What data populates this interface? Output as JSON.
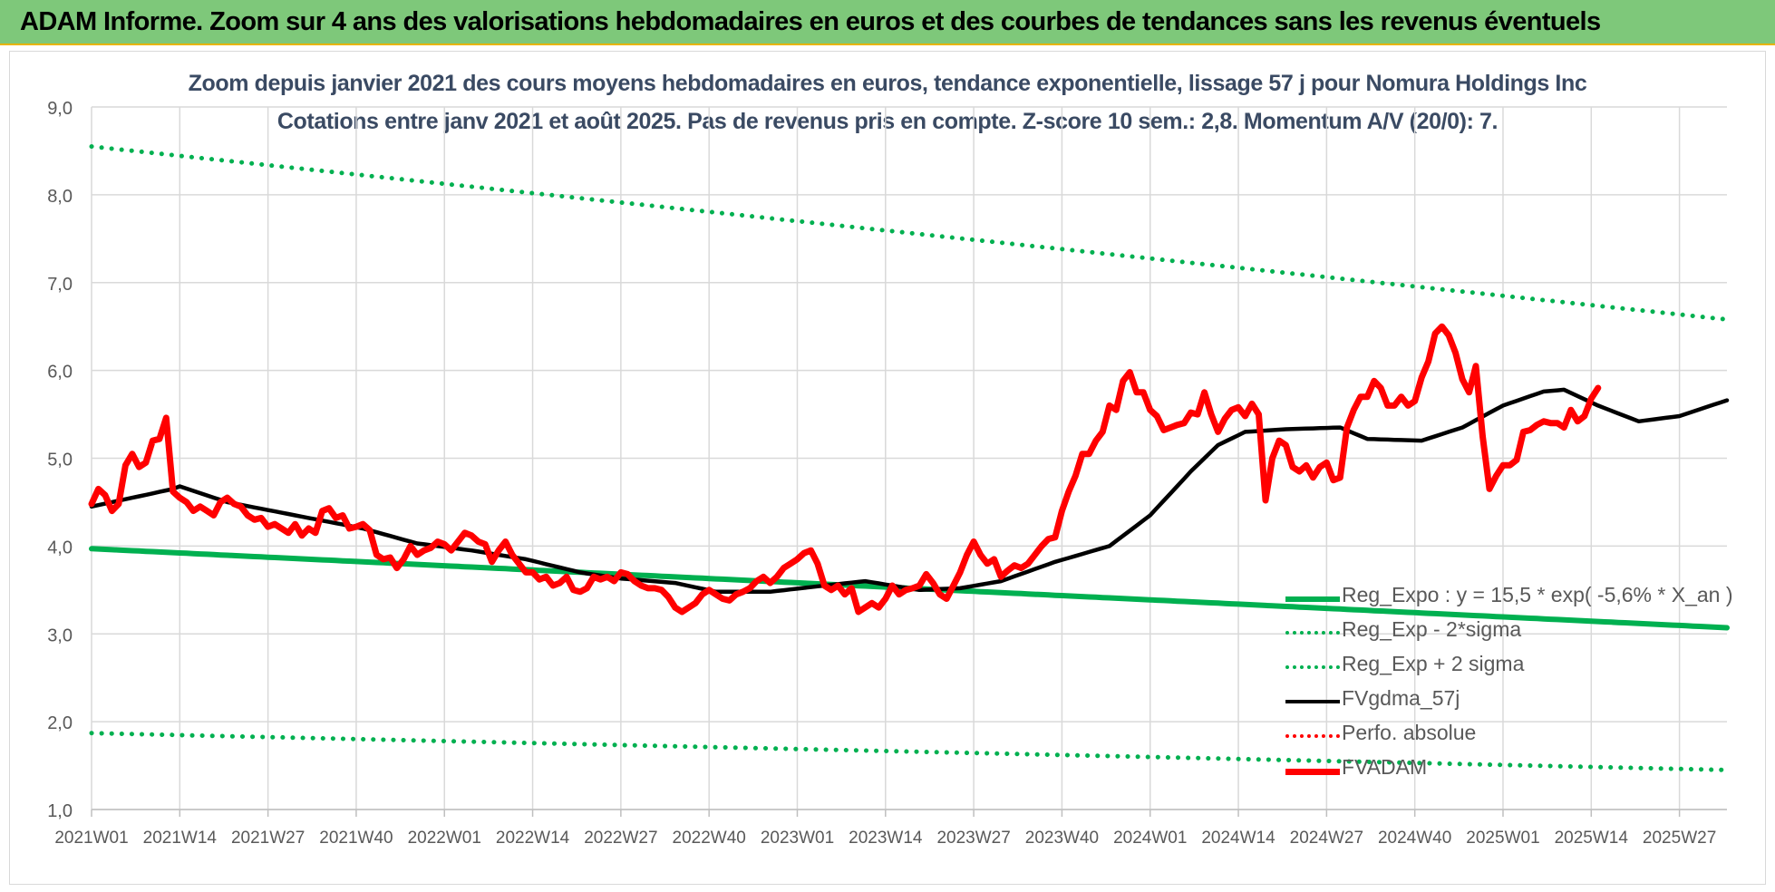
{
  "header": {
    "banner_title": "ADAM Informe. Zoom sur 4 ans des valorisations hebdomadaires en euros et des courbes de tendances sans les revenus éventuels"
  },
  "chart_data": {
    "type": "line",
    "title": "Zoom depuis janvier 2021 des cours moyens hebdomadaires en euros, tendance exponentielle, lissage 57 j pour Nomura Holdings Inc",
    "subtitle": "Cotations entre janv 2021 et août 2025.  Pas de revenus pris en compte. Z-score 10 sem.: 2,8. Momentum A/V (20/0): 7.",
    "ylim": [
      1.0,
      9.0
    ],
    "yticks": [
      "1,0",
      "2,0",
      "3,0",
      "4,0",
      "5,0",
      "6,0",
      "7,0",
      "8,0",
      "9,0"
    ],
    "x_tick_labels": [
      "2021W01",
      "2021W14",
      "2021W27",
      "2021W40",
      "2022W01",
      "2022W14",
      "2022W27",
      "2022W40",
      "2023W01",
      "2023W14",
      "2023W27",
      "2023W40",
      "2024W01",
      "2024W14",
      "2024W27",
      "2024W40",
      "2025W01",
      "2025W14",
      "2025W27"
    ],
    "x_tick_week_index": [
      0,
      13,
      26,
      39,
      52,
      65,
      78,
      91,
      104,
      117,
      130,
      143,
      156,
      169,
      182,
      195,
      208,
      221,
      234
    ],
    "n_weeks": 242,
    "grid": true,
    "legend_placement": "bottom-right",
    "series": [
      {
        "name": "Reg_Expo : y = 15,5 * exp( -5,6% *  X_an )",
        "style": "solid",
        "color": "#00b050",
        "anchors": [
          [
            0,
            3.97
          ],
          [
            241,
            3.07
          ]
        ]
      },
      {
        "name": "Reg_Exp - 2*sigma",
        "style": "dotted",
        "color": "#00b050",
        "anchors": [
          [
            0,
            1.87
          ],
          [
            241,
            1.45
          ]
        ]
      },
      {
        "name": "Reg_Exp + 2 sigma",
        "style": "dotted",
        "color": "#00b050",
        "anchors": [
          [
            0,
            8.55
          ],
          [
            241,
            6.58
          ]
        ]
      },
      {
        "name": "FVgdma_57j",
        "style": "solid",
        "color": "#000000",
        "anchors": [
          [
            0,
            4.45
          ],
          [
            6,
            4.55
          ],
          [
            12,
            4.65
          ],
          [
            13,
            4.68
          ],
          [
            20,
            4.5
          ],
          [
            30,
            4.35
          ],
          [
            40,
            4.2
          ],
          [
            48,
            4.03
          ],
          [
            56,
            3.95
          ],
          [
            64,
            3.85
          ],
          [
            72,
            3.7
          ],
          [
            78,
            3.63
          ],
          [
            86,
            3.58
          ],
          [
            92,
            3.48
          ],
          [
            100,
            3.48
          ],
          [
            108,
            3.55
          ],
          [
            114,
            3.6
          ],
          [
            122,
            3.5
          ],
          [
            128,
            3.52
          ],
          [
            134,
            3.6
          ],
          [
            142,
            3.82
          ],
          [
            150,
            4.0
          ],
          [
            156,
            4.35
          ],
          [
            162,
            4.85
          ],
          [
            166,
            5.15
          ],
          [
            170,
            5.3
          ],
          [
            176,
            5.33
          ],
          [
            184,
            5.35
          ],
          [
            188,
            5.22
          ],
          [
            196,
            5.2
          ],
          [
            202,
            5.35
          ],
          [
            208,
            5.6
          ],
          [
            214,
            5.76
          ],
          [
            217,
            5.78
          ],
          [
            222,
            5.6
          ],
          [
            228,
            5.42
          ],
          [
            234,
            5.48
          ],
          [
            241,
            5.66
          ]
        ]
      },
      {
        "name": "Perfo. absolue",
        "style": "dotted",
        "color": "#ff0000",
        "anchors": []
      },
      {
        "name": "FVADAM",
        "style": "solid",
        "color": "#ff0000",
        "anchors": [
          [
            0,
            4.48
          ],
          [
            1,
            4.65
          ],
          [
            2,
            4.58
          ],
          [
            3,
            4.4
          ],
          [
            4,
            4.48
          ],
          [
            5,
            4.92
          ],
          [
            6,
            5.05
          ],
          [
            7,
            4.9
          ],
          [
            8,
            4.95
          ],
          [
            9,
            5.2
          ],
          [
            10,
            5.22
          ],
          [
            11,
            5.46
          ],
          [
            12,
            4.62
          ],
          [
            13,
            4.55
          ],
          [
            14,
            4.5
          ],
          [
            15,
            4.4
          ],
          [
            16,
            4.45
          ],
          [
            17,
            4.4
          ],
          [
            18,
            4.35
          ],
          [
            19,
            4.5
          ],
          [
            20,
            4.55
          ],
          [
            21,
            4.48
          ],
          [
            22,
            4.45
          ],
          [
            23,
            4.35
          ],
          [
            24,
            4.3
          ],
          [
            25,
            4.32
          ],
          [
            26,
            4.22
          ],
          [
            27,
            4.25
          ],
          [
            28,
            4.2
          ],
          [
            29,
            4.15
          ],
          [
            30,
            4.25
          ],
          [
            31,
            4.12
          ],
          [
            32,
            4.2
          ],
          [
            33,
            4.15
          ],
          [
            34,
            4.4
          ],
          [
            35,
            4.43
          ],
          [
            36,
            4.32
          ],
          [
            37,
            4.35
          ],
          [
            38,
            4.2
          ],
          [
            39,
            4.22
          ],
          [
            40,
            4.25
          ],
          [
            41,
            4.18
          ],
          [
            42,
            3.9
          ],
          [
            43,
            3.85
          ],
          [
            44,
            3.87
          ],
          [
            45,
            3.75
          ],
          [
            46,
            3.85
          ],
          [
            47,
            4.0
          ],
          [
            48,
            3.9
          ],
          [
            49,
            3.95
          ],
          [
            50,
            3.98
          ],
          [
            51,
            4.05
          ],
          [
            52,
            4.02
          ],
          [
            53,
            3.95
          ],
          [
            54,
            4.05
          ],
          [
            55,
            4.15
          ],
          [
            56,
            4.12
          ],
          [
            57,
            4.05
          ],
          [
            58,
            4.02
          ],
          [
            59,
            3.82
          ],
          [
            60,
            3.95
          ],
          [
            61,
            4.05
          ],
          [
            62,
            3.9
          ],
          [
            63,
            3.8
          ],
          [
            64,
            3.7
          ],
          [
            65,
            3.7
          ],
          [
            66,
            3.62
          ],
          [
            67,
            3.65
          ],
          [
            68,
            3.55
          ],
          [
            69,
            3.58
          ],
          [
            70,
            3.65
          ],
          [
            71,
            3.5
          ],
          [
            72,
            3.48
          ],
          [
            73,
            3.52
          ],
          [
            74,
            3.65
          ],
          [
            75,
            3.62
          ],
          [
            76,
            3.65
          ],
          [
            77,
            3.6
          ],
          [
            78,
            3.7
          ],
          [
            79,
            3.68
          ],
          [
            80,
            3.6
          ],
          [
            81,
            3.55
          ],
          [
            82,
            3.52
          ],
          [
            83,
            3.52
          ],
          [
            84,
            3.5
          ],
          [
            85,
            3.42
          ],
          [
            86,
            3.3
          ],
          [
            87,
            3.25
          ],
          [
            88,
            3.3
          ],
          [
            89,
            3.35
          ],
          [
            90,
            3.45
          ],
          [
            91,
            3.5
          ],
          [
            92,
            3.45
          ],
          [
            93,
            3.4
          ],
          [
            94,
            3.38
          ],
          [
            95,
            3.45
          ],
          [
            96,
            3.48
          ],
          [
            97,
            3.52
          ],
          [
            98,
            3.6
          ],
          [
            99,
            3.65
          ],
          [
            100,
            3.58
          ],
          [
            101,
            3.65
          ],
          [
            102,
            3.75
          ],
          [
            103,
            3.8
          ],
          [
            104,
            3.85
          ],
          [
            105,
            3.92
          ],
          [
            106,
            3.95
          ],
          [
            107,
            3.8
          ],
          [
            108,
            3.55
          ],
          [
            109,
            3.5
          ],
          [
            110,
            3.55
          ],
          [
            111,
            3.45
          ],
          [
            112,
            3.52
          ],
          [
            113,
            3.25
          ],
          [
            114,
            3.3
          ],
          [
            115,
            3.35
          ],
          [
            116,
            3.3
          ],
          [
            117,
            3.4
          ],
          [
            118,
            3.55
          ],
          [
            119,
            3.45
          ],
          [
            120,
            3.5
          ],
          [
            121,
            3.52
          ],
          [
            122,
            3.55
          ],
          [
            123,
            3.68
          ],
          [
            124,
            3.58
          ],
          [
            125,
            3.45
          ],
          [
            126,
            3.4
          ],
          [
            127,
            3.55
          ],
          [
            128,
            3.7
          ],
          [
            129,
            3.9
          ],
          [
            130,
            4.05
          ],
          [
            131,
            3.9
          ],
          [
            132,
            3.8
          ],
          [
            133,
            3.85
          ],
          [
            134,
            3.65
          ],
          [
            135,
            3.72
          ],
          [
            136,
            3.78
          ],
          [
            137,
            3.75
          ],
          [
            138,
            3.8
          ],
          [
            139,
            3.9
          ],
          [
            140,
            4.0
          ],
          [
            141,
            4.08
          ],
          [
            142,
            4.1
          ],
          [
            143,
            4.4
          ],
          [
            144,
            4.62
          ],
          [
            145,
            4.8
          ],
          [
            146,
            5.05
          ],
          [
            147,
            5.05
          ],
          [
            148,
            5.2
          ],
          [
            149,
            5.3
          ],
          [
            150,
            5.6
          ],
          [
            151,
            5.55
          ],
          [
            152,
            5.88
          ],
          [
            153,
            5.98
          ],
          [
            154,
            5.75
          ],
          [
            155,
            5.75
          ],
          [
            156,
            5.55
          ],
          [
            157,
            5.48
          ],
          [
            158,
            5.32
          ],
          [
            159,
            5.35
          ],
          [
            160,
            5.38
          ],
          [
            161,
            5.4
          ],
          [
            162,
            5.52
          ],
          [
            163,
            5.5
          ],
          [
            164,
            5.75
          ],
          [
            165,
            5.5
          ],
          [
            166,
            5.3
          ],
          [
            167,
            5.45
          ],
          [
            168,
            5.55
          ],
          [
            169,
            5.58
          ],
          [
            170,
            5.48
          ],
          [
            171,
            5.62
          ],
          [
            172,
            5.5
          ],
          [
            173,
            4.52
          ],
          [
            174,
            5.0
          ],
          [
            175,
            5.2
          ],
          [
            176,
            5.15
          ],
          [
            177,
            4.9
          ],
          [
            178,
            4.85
          ],
          [
            179,
            4.92
          ],
          [
            180,
            4.78
          ],
          [
            181,
            4.9
          ],
          [
            182,
            4.95
          ],
          [
            183,
            4.75
          ],
          [
            184,
            4.78
          ],
          [
            185,
            5.35
          ],
          [
            186,
            5.55
          ],
          [
            187,
            5.7
          ],
          [
            188,
            5.7
          ],
          [
            189,
            5.88
          ],
          [
            190,
            5.8
          ],
          [
            191,
            5.6
          ],
          [
            192,
            5.6
          ],
          [
            193,
            5.7
          ],
          [
            194,
            5.6
          ],
          [
            195,
            5.65
          ],
          [
            196,
            5.92
          ],
          [
            197,
            6.1
          ],
          [
            198,
            6.42
          ],
          [
            199,
            6.5
          ],
          [
            200,
            6.4
          ],
          [
            201,
            6.2
          ],
          [
            202,
            5.9
          ],
          [
            203,
            5.75
          ],
          [
            204,
            6.05
          ],
          [
            205,
            5.25
          ],
          [
            206,
            4.65
          ],
          [
            207,
            4.8
          ],
          [
            208,
            4.92
          ],
          [
            209,
            4.92
          ],
          [
            210,
            4.98
          ],
          [
            211,
            5.3
          ],
          [
            212,
            5.32
          ],
          [
            213,
            5.38
          ],
          [
            214,
            5.42
          ],
          [
            215,
            5.4
          ],
          [
            216,
            5.4
          ],
          [
            217,
            5.35
          ],
          [
            218,
            5.55
          ],
          [
            219,
            5.42
          ],
          [
            220,
            5.48
          ],
          [
            221,
            5.68
          ],
          [
            222,
            5.8
          ]
        ]
      }
    ]
  }
}
